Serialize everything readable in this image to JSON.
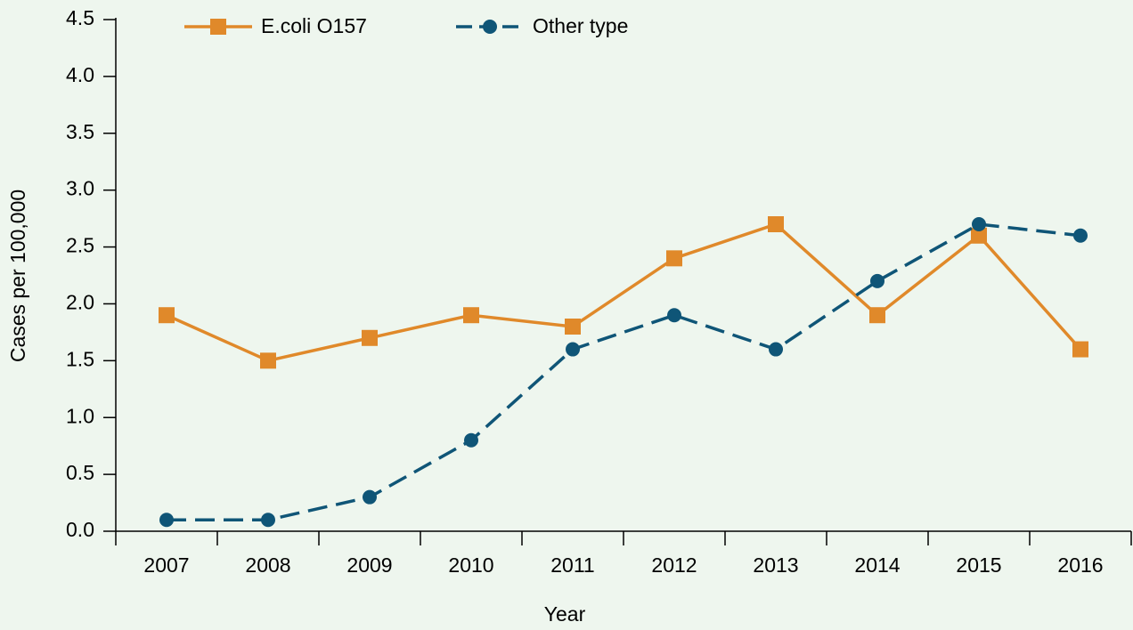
{
  "chart_data": {
    "type": "line",
    "xlabel": "Year",
    "ylabel": "Cases per 100,000",
    "categories": [
      "2007",
      "2008",
      "2009",
      "2010",
      "2011",
      "2012",
      "2013",
      "2014",
      "2015",
      "2016"
    ],
    "series": [
      {
        "name": "E.coli O157",
        "color": "#e0892a",
        "marker": "square",
        "dashed": false,
        "values": [
          1.9,
          1.5,
          1.7,
          1.9,
          1.8,
          2.4,
          2.7,
          1.9,
          2.6,
          1.6
        ]
      },
      {
        "name": "Other type",
        "color": "#0f5577",
        "marker": "circle",
        "dashed": true,
        "values": [
          0.1,
          0.1,
          0.3,
          0.8,
          1.6,
          1.9,
          1.6,
          2.2,
          2.7,
          2.6
        ]
      }
    ],
    "ylim": [
      0,
      4.5
    ],
    "yticks": [
      {
        "value": 0,
        "label": "0.0"
      },
      {
        "value": 0.5,
        "label": "0.5"
      },
      {
        "value": 1,
        "label": "1.0"
      },
      {
        "value": 1.5,
        "label": "1.5"
      },
      {
        "value": 2,
        "label": "2.0"
      },
      {
        "value": 2.5,
        "label": "2.5"
      },
      {
        "value": 3,
        "label": "3.0"
      },
      {
        "value": 3.5,
        "label": "3.5"
      },
      {
        "value": 4,
        "label": "4.0"
      },
      {
        "value": 4.5,
        "label": "4.5"
      }
    ]
  }
}
